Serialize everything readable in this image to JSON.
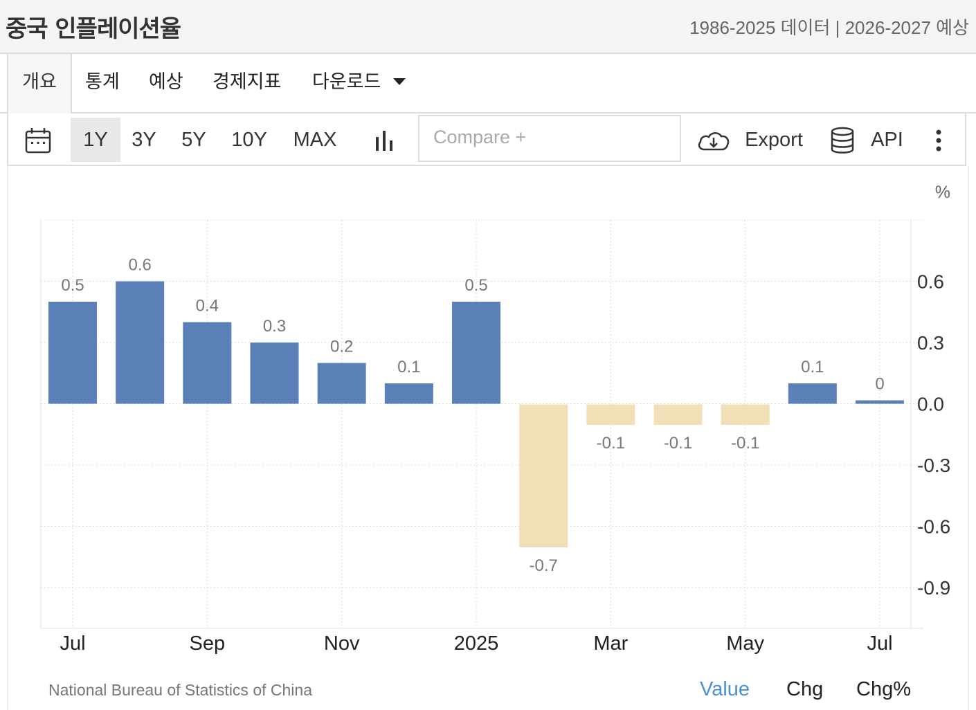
{
  "header": {
    "title": "중국 인플레이션율",
    "data_range": "1986-2025 데이터 | 2026-2027 예상"
  },
  "tabs": [
    {
      "label": "개요",
      "active": true
    },
    {
      "label": "통계"
    },
    {
      "label": "예상"
    },
    {
      "label": "경제지표"
    },
    {
      "label": "다운로드"
    }
  ],
  "toolbar": {
    "calendar_icon": "calendar-icon",
    "ranges": [
      "1Y",
      "3Y",
      "5Y",
      "10Y",
      "MAX"
    ],
    "selected_range": "1Y",
    "chart_type_icon": "bar-chart-icon",
    "compare_placeholder": "Compare +",
    "export_label": "Export",
    "export_icon": "cloud-download-icon",
    "api_label": "API",
    "api_icon": "database-icon",
    "more_icon": "more-vertical-icon"
  },
  "chart_data": {
    "type": "bar",
    "unit_label": "%",
    "categories": [
      "Jul 2024",
      "Aug 2024",
      "Sep 2024",
      "Oct 2024",
      "Nov 2024",
      "Dec 2024",
      "Jan 2025",
      "Feb 2025",
      "Mar 2025",
      "Apr 2025",
      "May 2025",
      "Jun 2025",
      "Jul 2025"
    ],
    "values": [
      0.5,
      0.6,
      0.4,
      0.3,
      0.2,
      0.1,
      0.5,
      -0.7,
      -0.1,
      -0.1,
      -0.1,
      0.1,
      0
    ],
    "value_labels": [
      "0.5",
      "0.6",
      "0.4",
      "0.3",
      "0.2",
      "0.1",
      "0.5",
      "-0.7",
      "-0.1",
      "-0.1",
      "-0.1",
      "0.1",
      "0"
    ],
    "x_tick_labels": [
      {
        "category": "Jul 2024",
        "label": "Jul"
      },
      {
        "category": "Sep 2024",
        "label": "Sep"
      },
      {
        "category": "Nov 2024",
        "label": "Nov"
      },
      {
        "category": "Jan 2025",
        "label": "2025"
      },
      {
        "category": "Mar 2025",
        "label": "Mar"
      },
      {
        "category": "May 2025",
        "label": "May"
      },
      {
        "category": "Jul 2025",
        "label": "Jul"
      }
    ],
    "y_ticks": [
      0.6,
      0.3,
      0.0,
      -0.3,
      -0.6,
      -0.9
    ],
    "y_tick_labels": [
      "0.6",
      "0.3",
      "0.0",
      "-0.3",
      "-0.6",
      "-0.9"
    ],
    "ylim": [
      -1.1,
      0.9
    ],
    "positive_color": "#5b80b8",
    "negative_color": "#f0dfb7",
    "grid": true,
    "y_axis_side": "right"
  },
  "footer": {
    "source": "National Bureau of Statistics of China",
    "options": [
      "Value",
      "Chg",
      "Chg%"
    ],
    "active_option": "Value"
  }
}
